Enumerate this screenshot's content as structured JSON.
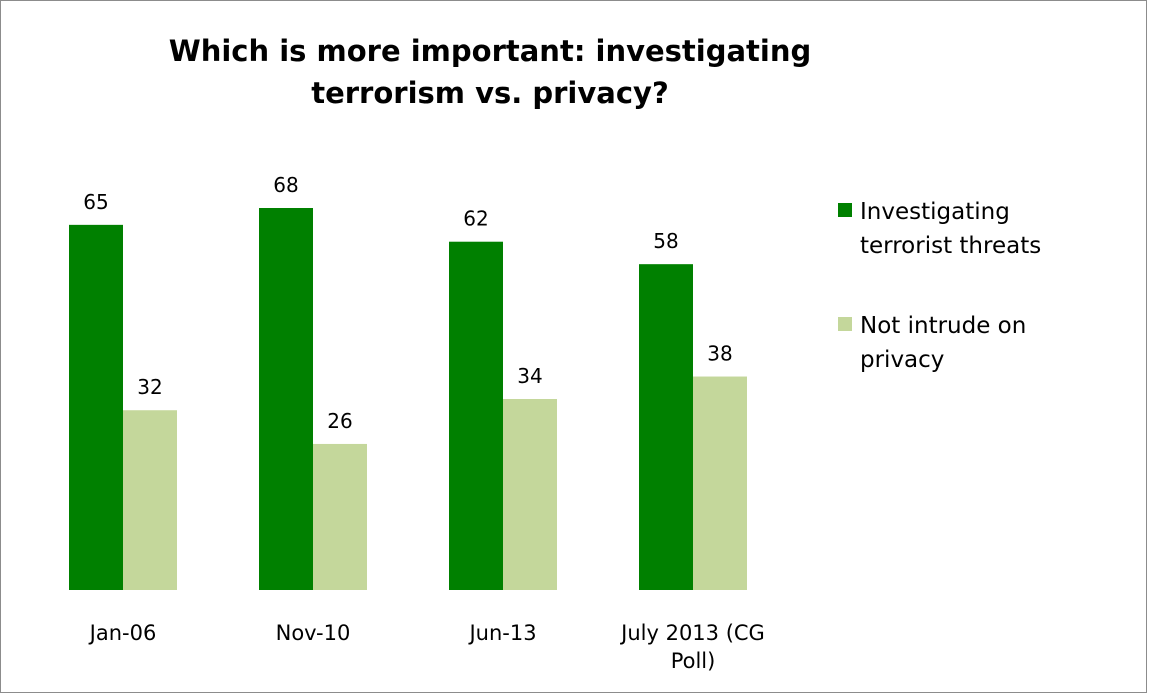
{
  "colors": {
    "series1": "#008000",
    "series2": "#c4d79b",
    "frame": "#8c8c8c"
  },
  "chart_data": {
    "type": "bar",
    "title": "Which is more important: investigating terrorism vs. privacy?",
    "categories": [
      [
        "Jan-06"
      ],
      [
        "Nov-10"
      ],
      [
        "Jun-13"
      ],
      [
        "July 2013 (CG",
        "Poll)"
      ]
    ],
    "series": [
      {
        "name": "Investigating terrorist threats",
        "values": [
          65,
          68,
          62,
          58
        ]
      },
      {
        "name": "Not intrude on privacy",
        "values": [
          32,
          26,
          34,
          38
        ]
      }
    ],
    "ylim": [
      0,
      68
    ],
    "grid": false,
    "legend": "right",
    "data_labels": true
  },
  "legend": [
    {
      "lines": [
        "Investigating",
        "terrorist threats"
      ]
    },
    {
      "lines": [
        "Not intrude on",
        "privacy"
      ]
    }
  ]
}
